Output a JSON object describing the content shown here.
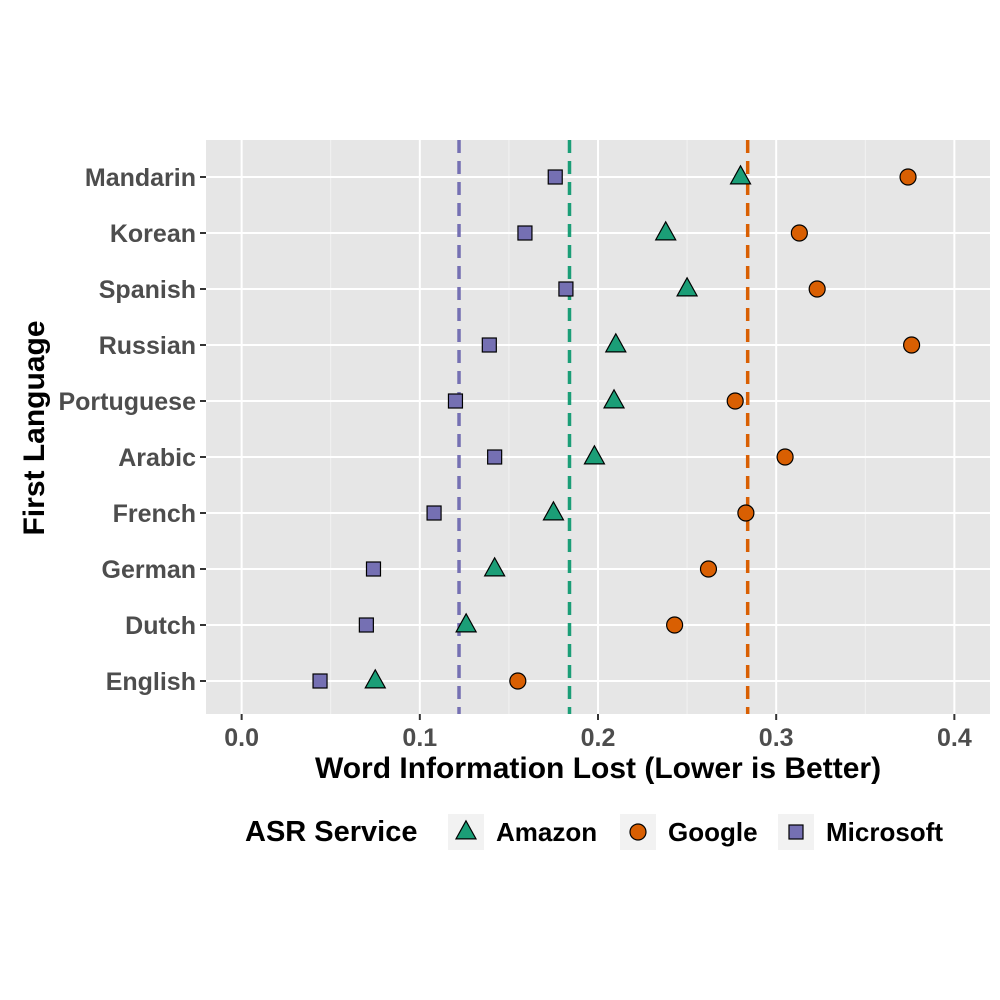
{
  "chart_data": {
    "type": "scatter",
    "xlabel": "Word Information Lost (Lower is Better)",
    "ylabel": "First Language",
    "xlim": [
      -0.02,
      0.42
    ],
    "x_ticks": [
      "0.0",
      "0.1",
      "0.2",
      "0.3",
      "0.4"
    ],
    "x_tick_values": [
      0.0,
      0.1,
      0.2,
      0.3,
      0.4
    ],
    "categories": [
      "Mandarin",
      "Korean",
      "Spanish",
      "Russian",
      "Portuguese",
      "Arabic",
      "French",
      "German",
      "Dutch",
      "English"
    ],
    "grid": true,
    "legend": {
      "title": "ASR Service",
      "position": "bottom"
    },
    "series": [
      {
        "name": "Amazon",
        "marker": "triangle",
        "color": "#1b9e77",
        "values": [
          0.28,
          0.238,
          0.25,
          0.21,
          0.209,
          0.198,
          0.175,
          0.142,
          0.126,
          0.075
        ],
        "mean_line": 0.184
      },
      {
        "name": "Google",
        "marker": "circle",
        "color": "#d95f02",
        "values": [
          0.374,
          0.313,
          0.323,
          0.376,
          0.277,
          0.305,
          0.283,
          0.262,
          0.243,
          0.155
        ],
        "mean_line": 0.284
      },
      {
        "name": "Microsoft",
        "marker": "square",
        "color": "#7570b3",
        "values": [
          0.176,
          0.159,
          0.182,
          0.139,
          0.12,
          0.142,
          0.108,
          0.074,
          0.07,
          0.044
        ],
        "mean_line": 0.122
      }
    ]
  }
}
